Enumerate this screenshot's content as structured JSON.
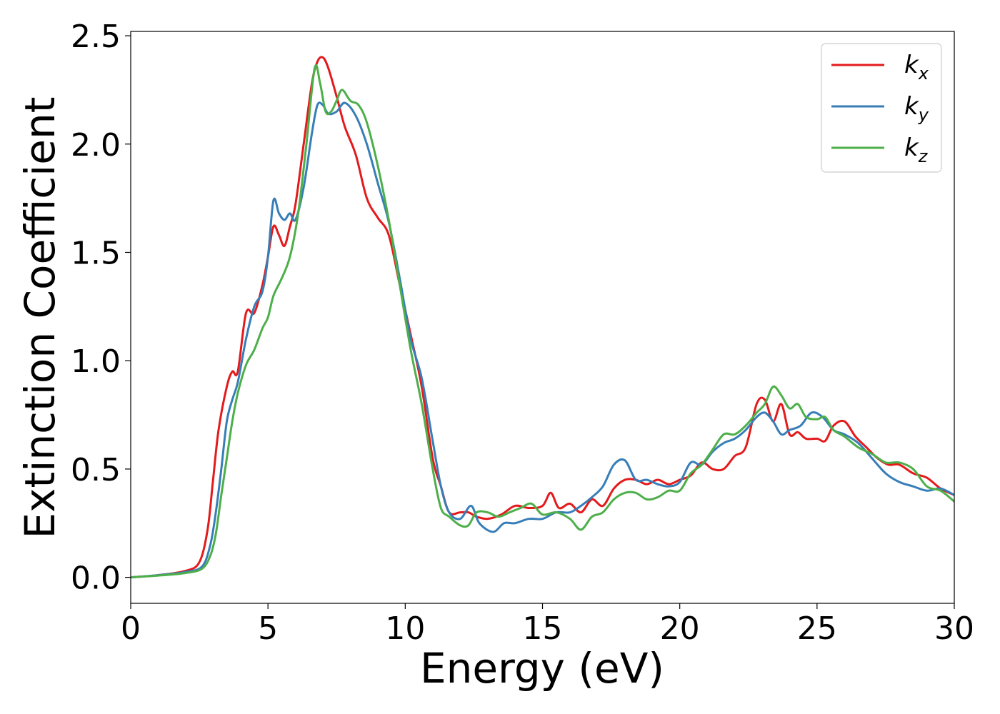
{
  "chart_data": {
    "type": "line",
    "title": "",
    "xlabel": "Energy (eV)",
    "ylabel": "Extinction Coefficient",
    "xlim": [
      0,
      30
    ],
    "ylim": [
      -0.12,
      2.52
    ],
    "xticks": [
      0,
      5,
      10,
      15,
      20,
      25,
      30
    ],
    "yticks": [
      0.0,
      0.5,
      1.0,
      1.5,
      2.0,
      2.5
    ],
    "xtick_labels": [
      "0",
      "5",
      "10",
      "15",
      "20",
      "25",
      "30"
    ],
    "ytick_labels": [
      "0.0",
      "0.5",
      "1.0",
      "1.5",
      "2.0",
      "2.5"
    ],
    "grid": false,
    "legend_position": "top-right",
    "series": [
      {
        "name": "k_x",
        "label_main": "k",
        "label_sub": "x",
        "color": "#e41a1c",
        "x": [
          0,
          1,
          2,
          2.5,
          2.8,
          3.0,
          3.2,
          3.5,
          3.7,
          3.9,
          4.2,
          4.5,
          4.8,
          5.0,
          5.2,
          5.4,
          5.6,
          5.8,
          6.0,
          6.3,
          6.6,
          6.8,
          7.0,
          7.2,
          7.5,
          7.8,
          8.2,
          8.6,
          9.0,
          9.4,
          9.8,
          10.2,
          10.6,
          11.0,
          11.3,
          11.6,
          12.0,
          12.3,
          12.6,
          13.0,
          13.5,
          14.0,
          14.5,
          15.0,
          15.3,
          15.6,
          16.0,
          16.4,
          16.8,
          17.2,
          17.6,
          18.0,
          18.4,
          18.8,
          19.2,
          19.6,
          20.0,
          20.4,
          20.8,
          21.2,
          21.6,
          22.0,
          22.4,
          22.8,
          23.1,
          23.4,
          23.7,
          24.0,
          24.3,
          24.6,
          25.0,
          25.3,
          25.6,
          26.0,
          26.4,
          26.8,
          27.2,
          27.6,
          28.0,
          28.5,
          29.0,
          29.5,
          30.0
        ],
        "values": [
          0.0,
          0.01,
          0.03,
          0.07,
          0.22,
          0.45,
          0.68,
          0.88,
          0.95,
          0.95,
          1.22,
          1.22,
          1.35,
          1.48,
          1.62,
          1.58,
          1.53,
          1.62,
          1.72,
          2.0,
          2.28,
          2.38,
          2.4,
          2.35,
          2.22,
          2.08,
          1.95,
          1.75,
          1.66,
          1.58,
          1.35,
          1.12,
          0.88,
          0.55,
          0.42,
          0.3,
          0.3,
          0.3,
          0.28,
          0.27,
          0.29,
          0.33,
          0.32,
          0.33,
          0.39,
          0.32,
          0.34,
          0.3,
          0.36,
          0.33,
          0.41,
          0.45,
          0.45,
          0.43,
          0.45,
          0.43,
          0.45,
          0.47,
          0.53,
          0.5,
          0.5,
          0.56,
          0.6,
          0.8,
          0.82,
          0.72,
          0.8,
          0.66,
          0.67,
          0.64,
          0.64,
          0.63,
          0.7,
          0.72,
          0.65,
          0.6,
          0.55,
          0.52,
          0.52,
          0.48,
          0.46,
          0.41,
          0.38
        ]
      },
      {
        "name": "k_y",
        "label_main": "k",
        "label_sub": "y",
        "color": "#377eb8",
        "x": [
          0,
          1,
          2,
          2.6,
          2.9,
          3.1,
          3.3,
          3.5,
          3.7,
          3.9,
          4.2,
          4.5,
          4.8,
          5.0,
          5.2,
          5.4,
          5.6,
          5.8,
          6.0,
          6.3,
          6.6,
          6.8,
          7.0,
          7.2,
          7.5,
          7.8,
          8.2,
          8.6,
          9.0,
          9.4,
          9.8,
          10.2,
          10.6,
          11.0,
          11.3,
          11.6,
          12.0,
          12.4,
          12.7,
          13.2,
          13.6,
          14.0,
          14.5,
          15.0,
          15.5,
          16.0,
          16.4,
          16.8,
          17.2,
          17.6,
          18.0,
          18.4,
          18.8,
          19.2,
          19.6,
          20.0,
          20.4,
          20.8,
          21.2,
          21.6,
          22.0,
          22.4,
          22.8,
          23.1,
          23.4,
          23.7,
          24.0,
          24.4,
          24.8,
          25.2,
          25.6,
          26.0,
          26.5,
          27.0,
          27.5,
          28.0,
          28.5,
          29.0,
          29.5,
          30.0
        ],
        "values": [
          0.0,
          0.01,
          0.025,
          0.05,
          0.15,
          0.3,
          0.5,
          0.72,
          0.82,
          0.9,
          1.1,
          1.25,
          1.32,
          1.48,
          1.74,
          1.68,
          1.65,
          1.68,
          1.65,
          1.8,
          2.05,
          2.18,
          2.18,
          2.14,
          2.15,
          2.19,
          2.13,
          2.0,
          1.82,
          1.64,
          1.38,
          1.1,
          0.92,
          0.63,
          0.42,
          0.3,
          0.27,
          0.33,
          0.25,
          0.21,
          0.25,
          0.25,
          0.27,
          0.27,
          0.3,
          0.3,
          0.33,
          0.37,
          0.42,
          0.52,
          0.54,
          0.45,
          0.45,
          0.43,
          0.42,
          0.44,
          0.53,
          0.52,
          0.58,
          0.62,
          0.64,
          0.68,
          0.74,
          0.76,
          0.72,
          0.66,
          0.68,
          0.7,
          0.76,
          0.74,
          0.68,
          0.66,
          0.62,
          0.55,
          0.48,
          0.44,
          0.42,
          0.4,
          0.41,
          0.38
        ]
      },
      {
        "name": "k_z",
        "label_main": "k",
        "label_sub": "z",
        "color": "#4daf4a",
        "x": [
          0,
          1,
          2,
          2.6,
          2.9,
          3.1,
          3.3,
          3.5,
          3.7,
          3.9,
          4.2,
          4.5,
          4.8,
          5.0,
          5.2,
          5.5,
          5.8,
          6.1,
          6.4,
          6.7,
          6.9,
          7.1,
          7.3,
          7.5,
          7.7,
          8.0,
          8.3,
          8.6,
          9.0,
          9.4,
          9.8,
          10.2,
          10.6,
          11.0,
          11.3,
          11.6,
          12.0,
          12.3,
          12.6,
          13.0,
          13.4,
          13.8,
          14.2,
          14.6,
          15.0,
          15.5,
          16.0,
          16.4,
          16.8,
          17.2,
          17.6,
          18.0,
          18.4,
          18.8,
          19.2,
          19.6,
          20.0,
          20.4,
          20.8,
          21.2,
          21.6,
          22.0,
          22.4,
          22.8,
          23.1,
          23.4,
          23.7,
          24.0,
          24.3,
          24.6,
          25.0,
          25.3,
          25.6,
          26.0,
          26.5,
          27.0,
          27.5,
          28.0,
          28.5,
          29.0,
          29.5,
          30.0
        ],
        "values": [
          0.0,
          0.008,
          0.02,
          0.04,
          0.1,
          0.2,
          0.38,
          0.55,
          0.72,
          0.85,
          0.98,
          1.05,
          1.15,
          1.2,
          1.3,
          1.38,
          1.48,
          1.68,
          2.0,
          2.35,
          2.28,
          2.15,
          2.15,
          2.2,
          2.25,
          2.2,
          2.18,
          2.1,
          1.9,
          1.65,
          1.35,
          1.05,
          0.8,
          0.5,
          0.32,
          0.28,
          0.24,
          0.24,
          0.3,
          0.3,
          0.28,
          0.3,
          0.32,
          0.34,
          0.29,
          0.3,
          0.27,
          0.22,
          0.28,
          0.3,
          0.36,
          0.39,
          0.39,
          0.36,
          0.37,
          0.4,
          0.4,
          0.48,
          0.52,
          0.59,
          0.66,
          0.66,
          0.7,
          0.76,
          0.8,
          0.88,
          0.84,
          0.78,
          0.8,
          0.74,
          0.73,
          0.74,
          0.68,
          0.65,
          0.6,
          0.57,
          0.53,
          0.53,
          0.5,
          0.42,
          0.4,
          0.35
        ]
      }
    ]
  }
}
